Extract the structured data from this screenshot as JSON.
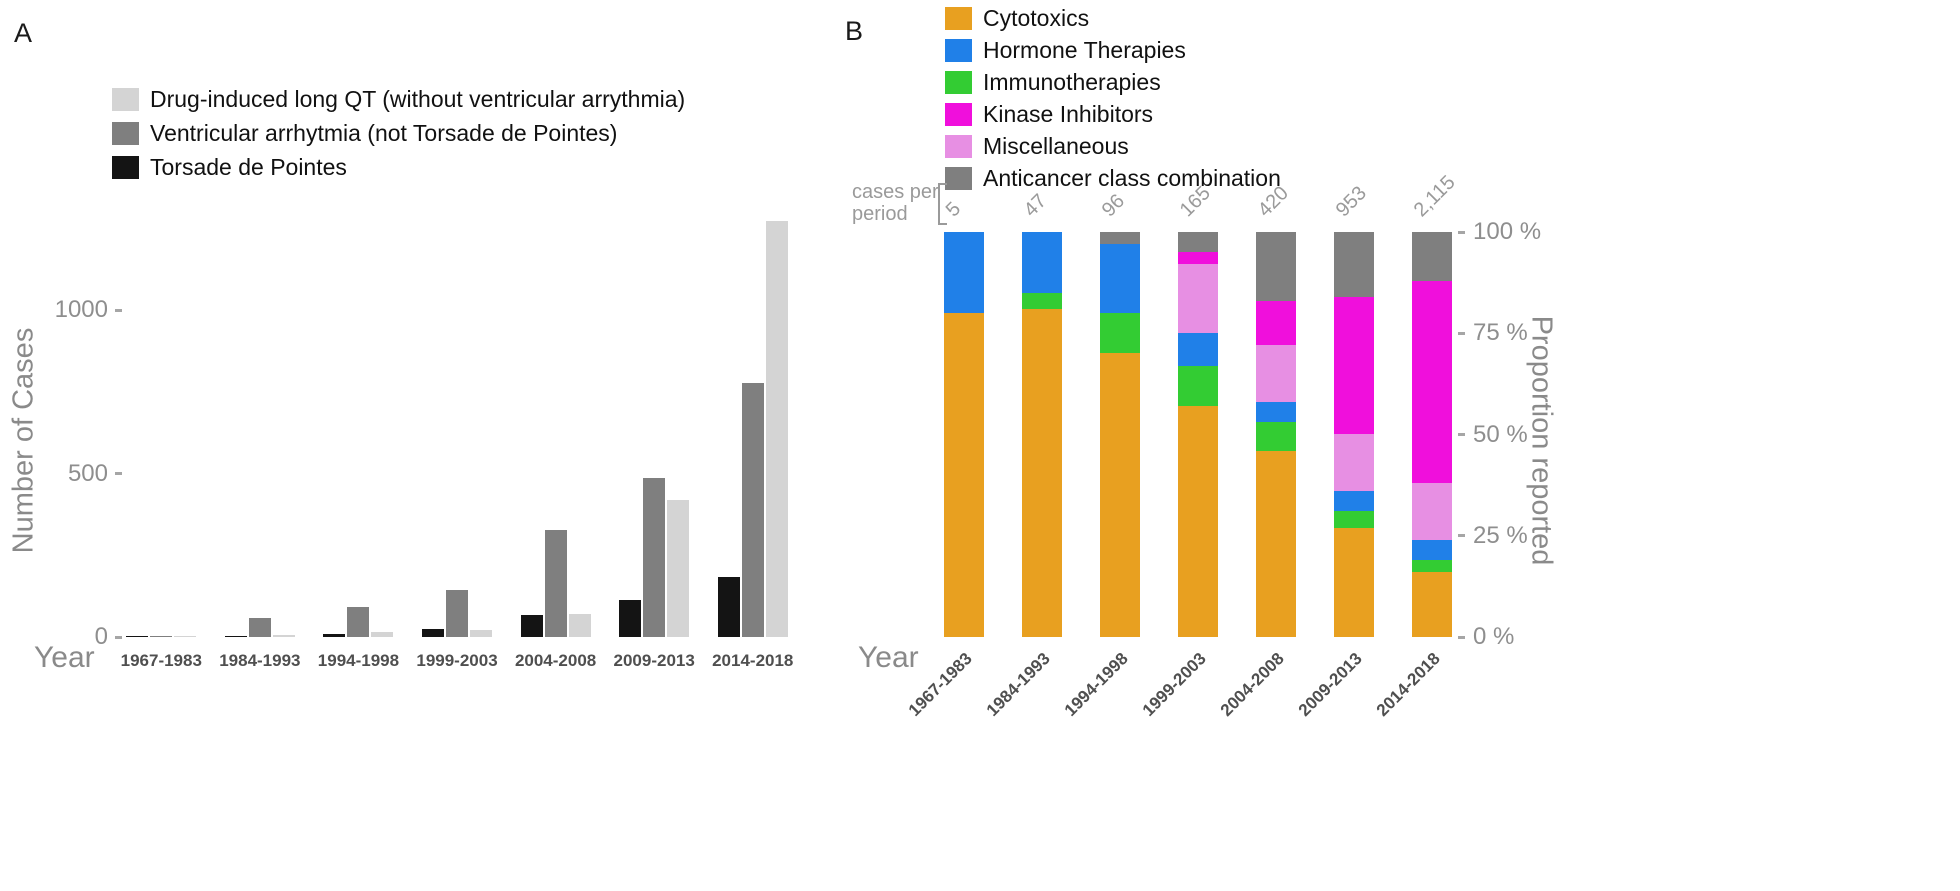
{
  "chart_data": [
    {
      "panel_label": "A",
      "type": "bar",
      "xlabel": "Year",
      "ylabel": "Number of Cases",
      "ylim": [
        0,
        1300
      ],
      "grid": false,
      "legend_position": "top-left",
      "yticks": [
        {
          "value": 0,
          "label": "0"
        },
        {
          "value": 500,
          "label": "500"
        },
        {
          "value": 1000,
          "label": "1000"
        }
      ],
      "categories": [
        "1967-1983",
        "1984-1993",
        "1994-1998",
        "1999-2003",
        "2004-2008",
        "2009-2013",
        "2014-2018"
      ],
      "legend_order": [
        "Drug-induced long QT (without ventricular arrythmia)",
        "Ventricular arrhytmia (not Torsade de Pointes)",
        "Torsade de Pointes"
      ],
      "series": [
        {
          "name": "Torsade de Pointes",
          "color": "#141414",
          "values": [
            1,
            3,
            9,
            24,
            67,
            113,
            185
          ]
        },
        {
          "name": "Ventricular arrhytmia (not Torsade de Pointes)",
          "color": "#7f7f7f",
          "values": [
            4,
            58,
            92,
            144,
            327,
            486,
            777
          ]
        },
        {
          "name": "Drug-induced long QT (without ventricular arrythmia)",
          "color": "#d4d4d4",
          "values": [
            1,
            6,
            15,
            21,
            70,
            419,
            1271
          ]
        }
      ]
    },
    {
      "panel_label": "B",
      "type": "stacked-bar-100",
      "xlabel": "Year",
      "ylabel_right": "Proportion reported",
      "grid": false,
      "legend_position": "top",
      "cases_note_lines": [
        "cases per",
        "period"
      ],
      "cases_per_period": [
        "5",
        "47",
        "96",
        "165",
        "420",
        "953",
        "2,115"
      ],
      "yticks": [
        {
          "value": 0,
          "label": "0 %"
        },
        {
          "value": 25,
          "label": "25 %"
        },
        {
          "value": 50,
          "label": "50 %"
        },
        {
          "value": 75,
          "label": "75 %"
        },
        {
          "value": 100,
          "label": "100 %"
        }
      ],
      "categories": [
        "1967-1983",
        "1984-1993",
        "1994-1998",
        "1999-2003",
        "2004-2008",
        "2009-2013",
        "2014-2018"
      ],
      "legend_order": [
        "Cytotoxics",
        "Hormone Therapies",
        "Immunotherapies",
        "Kinase Inhibitors",
        "Miscellaneous",
        "Anticancer class combination"
      ],
      "stack_order_bottom_to_top": [
        "Cytotoxics",
        "Immunotherapies",
        "Hormone Therapies",
        "Miscellaneous",
        "Kinase Inhibitors",
        "Anticancer class combination"
      ],
      "series": [
        {
          "name": "Cytotoxics",
          "color": "#e8a020",
          "values_percent": [
            80,
            81,
            70,
            57,
            46,
            27,
            16
          ]
        },
        {
          "name": "Immunotherapies",
          "color": "#33cc33",
          "values_percent": [
            0,
            4,
            10,
            10,
            7,
            4,
            3
          ]
        },
        {
          "name": "Hormone Therapies",
          "color": "#2080e8",
          "values_percent": [
            20,
            15,
            17,
            8,
            5,
            5,
            5
          ]
        },
        {
          "name": "Miscellaneous",
          "color": "#e78fe3",
          "values_percent": [
            0,
            0,
            0,
            17,
            14,
            14,
            14
          ]
        },
        {
          "name": "Kinase Inhibitors",
          "color": "#f00fdc",
          "values_percent": [
            0,
            0,
            0,
            3,
            11,
            34,
            50
          ]
        },
        {
          "name": "Anticancer class combination",
          "color": "#7f7f7f",
          "values_percent": [
            0,
            0,
            3,
            5,
            17,
            16,
            12
          ]
        }
      ]
    }
  ]
}
